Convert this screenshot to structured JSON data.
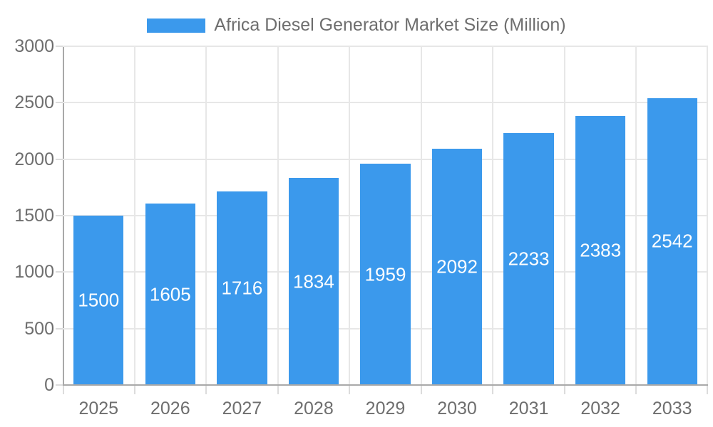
{
  "legend": {
    "label": "Africa Diesel Generator Market Size (Million)"
  },
  "chart_data": {
    "type": "bar",
    "title": "Africa Diesel Generator Market Size (Million)",
    "series_name": "Africa Diesel Generator Market Size (Million)",
    "categories": [
      "2025",
      "2026",
      "2027",
      "2028",
      "2029",
      "2030",
      "2031",
      "2032",
      "2033"
    ],
    "values": [
      1500,
      1605,
      1716,
      1834,
      1959,
      2092,
      2233,
      2383,
      2542
    ],
    "value_labels_inside_bars": true,
    "xlabel": "",
    "ylabel": "",
    "ylim": [
      0,
      3000
    ],
    "ytick_step": 500,
    "yticks": [
      0,
      500,
      1000,
      1500,
      2000,
      2500,
      3000
    ],
    "grid": true,
    "legend_position": "top-center",
    "bar_width_fraction": 0.7,
    "colors": {
      "bar": "#3B99EC",
      "grid": "#E7E7E7",
      "axis": "#A9A9A9",
      "tick": "#DCDCDC",
      "text": "#6E6E6E",
      "value_label": "#FFFFFF",
      "background": "#FFFFFF"
    }
  }
}
